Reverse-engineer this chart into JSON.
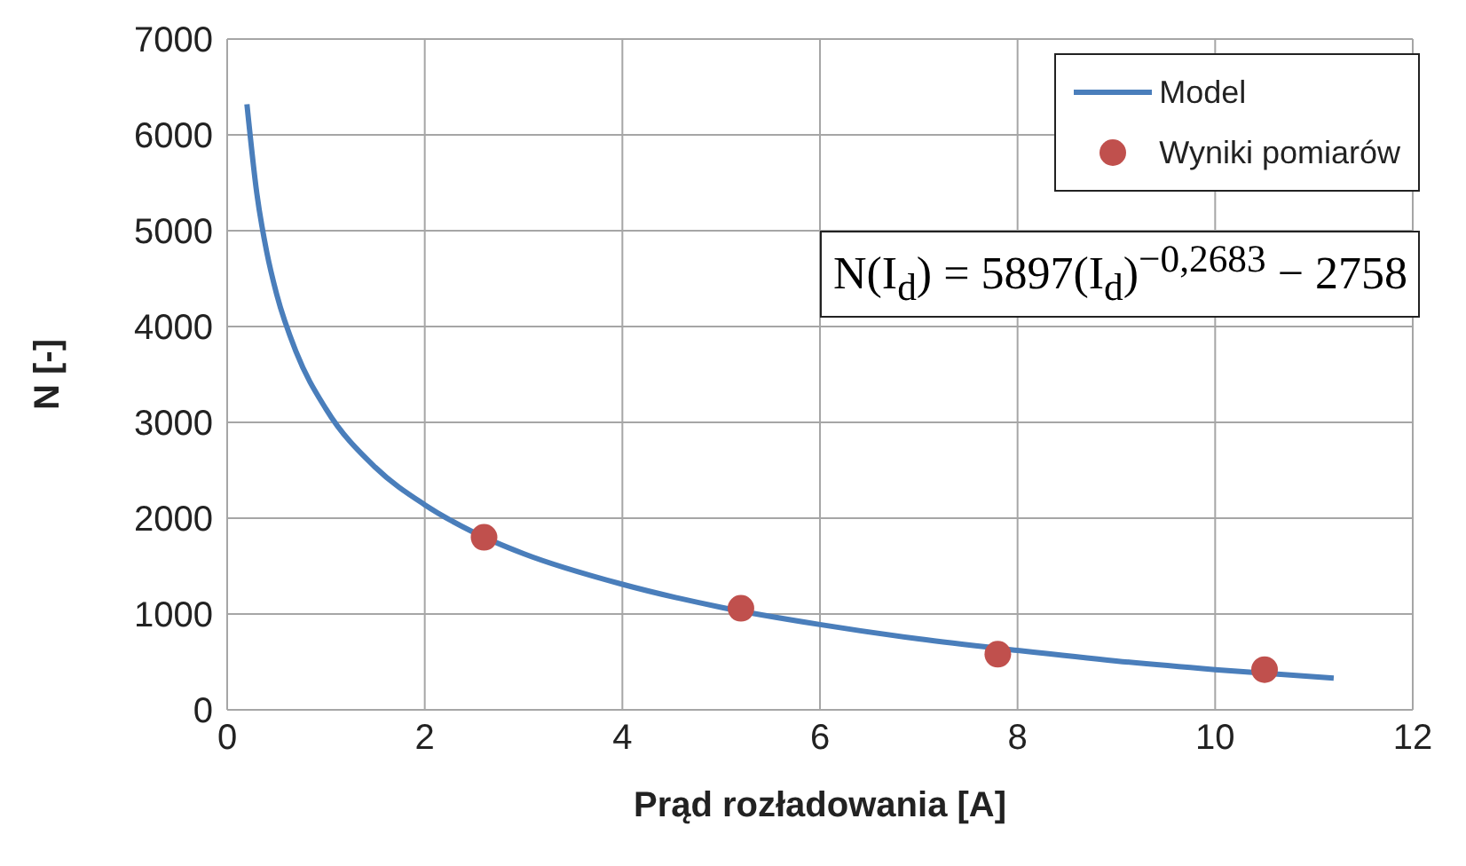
{
  "chart_data": {
    "type": "line",
    "xlabel": "Prąd rozładowania [A]",
    "ylabel": "N [-]",
    "xlim": [
      0,
      12
    ],
    "xticks": [
      0,
      2,
      4,
      6,
      8,
      10,
      12
    ],
    "ylim": [
      0,
      7000
    ],
    "yticks": [
      0,
      1000,
      2000,
      3000,
      4000,
      5000,
      6000,
      7000
    ],
    "grid": true,
    "legend": "top right",
    "series": [
      {
        "name": "Model",
        "color": "#4a7ebb",
        "marker": "none",
        "x": [
          0.2,
          0.3,
          0.4,
          0.5,
          0.7,
          1,
          1.5,
          2,
          2.5,
          3,
          4,
          5,
          6,
          7,
          8,
          9,
          10,
          11.2
        ],
        "values": [
          6320,
          5390,
          4780,
          4340,
          3730,
          3140,
          2530,
          2140,
          1850,
          1630,
          1310,
          1070,
          890,
          740,
          620,
          510,
          420,
          330
        ]
      },
      {
        "name": "Wyniki pomiarów",
        "type": "scatter",
        "color": "#c0504d",
        "marker": "circle",
        "x": [
          2.6,
          5.2,
          7.8,
          10.5
        ],
        "values": [
          1800,
          1060,
          580,
          420
        ]
      }
    ],
    "annotations": [
      "N(I$_{d}$) = 5897(I$_{d}$)$^{−0,2683}$ − 2758"
    ]
  }
}
